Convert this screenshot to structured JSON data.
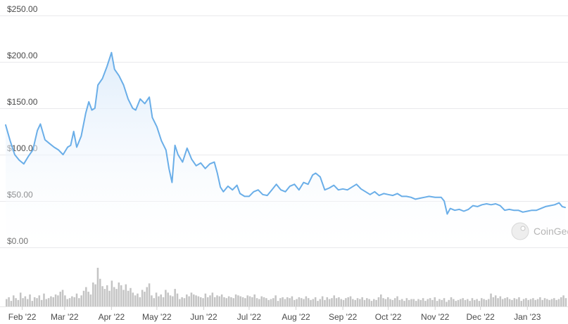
{
  "chart_data": {
    "type": "area",
    "ylabel": "",
    "xlabel": "",
    "ylim": [
      0,
      250
    ],
    "y_ticks": [
      "$0.00",
      "$50.00",
      "$100.00",
      "$150.00",
      "$200.00",
      "$250.00"
    ],
    "y_tick_values": [
      0,
      50,
      100,
      150,
      200,
      250
    ],
    "x_tick_labels": [
      "Feb '22",
      "Mar '22",
      "Apr '22",
      "May '22",
      "Jun '22",
      "Jul '22",
      "Aug '22",
      "Sep '22",
      "Oct '22",
      "Nov '22",
      "Dec '22",
      "Jan '23"
    ],
    "x_tick_dates": [
      "2022-02-01",
      "2022-03-01",
      "2022-04-01",
      "2022-05-01",
      "2022-06-01",
      "2022-07-01",
      "2022-08-01",
      "2022-09-01",
      "2022-10-01",
      "2022-11-01",
      "2022-12-01",
      "2023-01-01"
    ],
    "x_range": [
      "2022-01-21",
      "2023-01-26"
    ],
    "grid": true,
    "series": [
      {
        "color": "#6aaee8",
        "points": [
          [
            "2022-01-21",
            132
          ],
          [
            "2022-01-24",
            115
          ],
          [
            "2022-01-27",
            100
          ],
          [
            "2022-01-30",
            94
          ],
          [
            "2022-02-02",
            90
          ],
          [
            "2022-02-05",
            98
          ],
          [
            "2022-02-08",
            105
          ],
          [
            "2022-02-11",
            126
          ],
          [
            "2022-02-13",
            133
          ],
          [
            "2022-02-16",
            116
          ],
          [
            "2022-02-19",
            112
          ],
          [
            "2022-02-22",
            108
          ],
          [
            "2022-02-25",
            105
          ],
          [
            "2022-02-28",
            100
          ],
          [
            "2022-03-03",
            108
          ],
          [
            "2022-03-05",
            110
          ],
          [
            "2022-03-07",
            125
          ],
          [
            "2022-03-09",
            108
          ],
          [
            "2022-03-12",
            120
          ],
          [
            "2022-03-15",
            145
          ],
          [
            "2022-03-17",
            157
          ],
          [
            "2022-03-19",
            148
          ],
          [
            "2022-03-21",
            150
          ],
          [
            "2022-03-23",
            175
          ],
          [
            "2022-03-26",
            182
          ],
          [
            "2022-03-29",
            195
          ],
          [
            "2022-04-01",
            210
          ],
          [
            "2022-04-03",
            192
          ],
          [
            "2022-04-06",
            185
          ],
          [
            "2022-04-09",
            175
          ],
          [
            "2022-04-12",
            160
          ],
          [
            "2022-04-15",
            150
          ],
          [
            "2022-04-17",
            148
          ],
          [
            "2022-04-20",
            160
          ],
          [
            "2022-04-23",
            155
          ],
          [
            "2022-04-26",
            162
          ],
          [
            "2022-04-28",
            140
          ],
          [
            "2022-05-01",
            130
          ],
          [
            "2022-05-04",
            115
          ],
          [
            "2022-05-07",
            105
          ],
          [
            "2022-05-09",
            85
          ],
          [
            "2022-05-11",
            70
          ],
          [
            "2022-05-13",
            110
          ],
          [
            "2022-05-15",
            100
          ],
          [
            "2022-05-18",
            92
          ],
          [
            "2022-05-21",
            107
          ],
          [
            "2022-05-24",
            95
          ],
          [
            "2022-05-27",
            88
          ],
          [
            "2022-05-30",
            91
          ],
          [
            "2022-06-02",
            85
          ],
          [
            "2022-06-05",
            90
          ],
          [
            "2022-06-08",
            92
          ],
          [
            "2022-06-10",
            80
          ],
          [
            "2022-06-12",
            65
          ],
          [
            "2022-06-14",
            60
          ],
          [
            "2022-06-17",
            66
          ],
          [
            "2022-06-20",
            62
          ],
          [
            "2022-06-23",
            67
          ],
          [
            "2022-06-25",
            58
          ],
          [
            "2022-06-28",
            55
          ],
          [
            "2022-07-01",
            55
          ],
          [
            "2022-07-04",
            60
          ],
          [
            "2022-07-07",
            62
          ],
          [
            "2022-07-10",
            57
          ],
          [
            "2022-07-13",
            56
          ],
          [
            "2022-07-16",
            62
          ],
          [
            "2022-07-19",
            68
          ],
          [
            "2022-07-22",
            62
          ],
          [
            "2022-07-25",
            60
          ],
          [
            "2022-07-28",
            66
          ],
          [
            "2022-07-31",
            68
          ],
          [
            "2022-08-03",
            62
          ],
          [
            "2022-08-06",
            70
          ],
          [
            "2022-08-09",
            68
          ],
          [
            "2022-08-12",
            78
          ],
          [
            "2022-08-14",
            80
          ],
          [
            "2022-08-17",
            76
          ],
          [
            "2022-08-20",
            62
          ],
          [
            "2022-08-23",
            64
          ],
          [
            "2022-08-26",
            67
          ],
          [
            "2022-08-29",
            62
          ],
          [
            "2022-09-01",
            63
          ],
          [
            "2022-09-04",
            62
          ],
          [
            "2022-09-07",
            65
          ],
          [
            "2022-09-10",
            68
          ],
          [
            "2022-09-13",
            63
          ],
          [
            "2022-09-16",
            60
          ],
          [
            "2022-09-19",
            57
          ],
          [
            "2022-09-22",
            60
          ],
          [
            "2022-09-25",
            56
          ],
          [
            "2022-09-28",
            58
          ],
          [
            "2022-10-01",
            57
          ],
          [
            "2022-10-04",
            56
          ],
          [
            "2022-10-07",
            58
          ],
          [
            "2022-10-10",
            55
          ],
          [
            "2022-10-13",
            55
          ],
          [
            "2022-10-16",
            54
          ],
          [
            "2022-10-19",
            52
          ],
          [
            "2022-10-22",
            53
          ],
          [
            "2022-10-25",
            54
          ],
          [
            "2022-10-28",
            55
          ],
          [
            "2022-11-01",
            54
          ],
          [
            "2022-11-05",
            54
          ],
          [
            "2022-11-07",
            50
          ],
          [
            "2022-11-09",
            36
          ],
          [
            "2022-11-11",
            42
          ],
          [
            "2022-11-14",
            40
          ],
          [
            "2022-11-17",
            41
          ],
          [
            "2022-11-20",
            39
          ],
          [
            "2022-11-23",
            41
          ],
          [
            "2022-11-26",
            45
          ],
          [
            "2022-11-29",
            44
          ],
          [
            "2022-12-02",
            46
          ],
          [
            "2022-12-05",
            47
          ],
          [
            "2022-12-08",
            46
          ],
          [
            "2022-12-11",
            47
          ],
          [
            "2022-12-14",
            45
          ],
          [
            "2022-12-17",
            40
          ],
          [
            "2022-12-20",
            41
          ],
          [
            "2022-12-23",
            40
          ],
          [
            "2022-12-26",
            40
          ],
          [
            "2022-12-29",
            38
          ],
          [
            "2023-01-01",
            39
          ],
          [
            "2023-01-04",
            40
          ],
          [
            "2023-01-07",
            40
          ],
          [
            "2023-01-10",
            42
          ],
          [
            "2023-01-13",
            44
          ],
          [
            "2023-01-16",
            45
          ],
          [
            "2023-01-19",
            46
          ],
          [
            "2023-01-22",
            48
          ],
          [
            "2023-01-24",
            44
          ],
          [
            "2023-01-26",
            43
          ]
        ]
      }
    ],
    "volume": [
      8,
      10,
      6,
      12,
      9,
      7,
      15,
      9,
      11,
      8,
      13,
      6,
      10,
      9,
      12,
      7,
      14,
      8,
      9,
      11,
      10,
      13,
      12,
      16,
      18,
      12,
      8,
      9,
      11,
      10,
      14,
      9,
      12,
      17,
      21,
      16,
      13,
      26,
      24,
      42,
      30,
      22,
      19,
      23,
      17,
      28,
      21,
      19,
      26,
      23,
      18,
      24,
      17,
      20,
      15,
      12,
      14,
      10,
      18,
      16,
      21,
      25,
      12,
      9,
      15,
      11,
      13,
      10,
      18,
      15,
      12,
      11,
      19,
      14,
      8,
      10,
      9,
      13,
      11,
      15,
      13,
      12,
      11,
      10,
      9,
      14,
      10,
      12,
      15,
      10,
      12,
      11,
      13,
      10,
      9,
      11,
      10,
      9,
      13,
      12,
      11,
      10,
      9,
      12,
      11,
      10,
      13,
      9,
      8,
      11,
      10,
      9,
      7,
      8,
      9,
      12,
      6,
      9,
      10,
      8,
      10,
      9,
      11,
      7,
      8,
      10,
      9,
      8,
      11,
      9,
      7,
      8,
      10,
      6,
      8,
      11,
      7,
      10,
      8,
      9,
      12,
      9,
      10,
      8,
      7,
      9,
      10,
      11,
      8,
      7,
      9,
      8,
      10,
      7,
      9,
      8,
      6,
      8,
      7,
      10,
      13,
      9,
      8,
      10,
      8,
      7,
      9,
      11,
      7,
      8,
      6,
      9,
      7,
      8,
      8,
      6,
      8,
      7,
      9,
      6,
      8,
      9,
      7,
      10,
      6,
      8,
      7,
      9,
      5,
      7,
      10,
      8,
      6,
      7,
      8,
      9,
      7,
      8,
      6,
      9,
      7,
      8,
      6,
      9,
      8,
      7,
      8,
      14,
      10,
      12,
      9,
      11,
      8,
      9,
      10,
      8,
      7,
      9,
      8,
      10,
      6,
      8,
      9,
      7,
      8,
      9,
      7,
      8,
      10,
      7,
      9,
      8,
      7,
      8,
      9,
      7,
      8,
      10,
      12,
      9
    ],
    "volume_ylim": [
      0,
      42
    ]
  },
  "watermark": {
    "text": "CoinGecko",
    "icon": "gecko-logo-icon"
  },
  "colors": {
    "line": "#6aaee8",
    "fill_top": "#dcebfb",
    "volume": "#c4c4c4",
    "grid": "#e9e9ec"
  }
}
